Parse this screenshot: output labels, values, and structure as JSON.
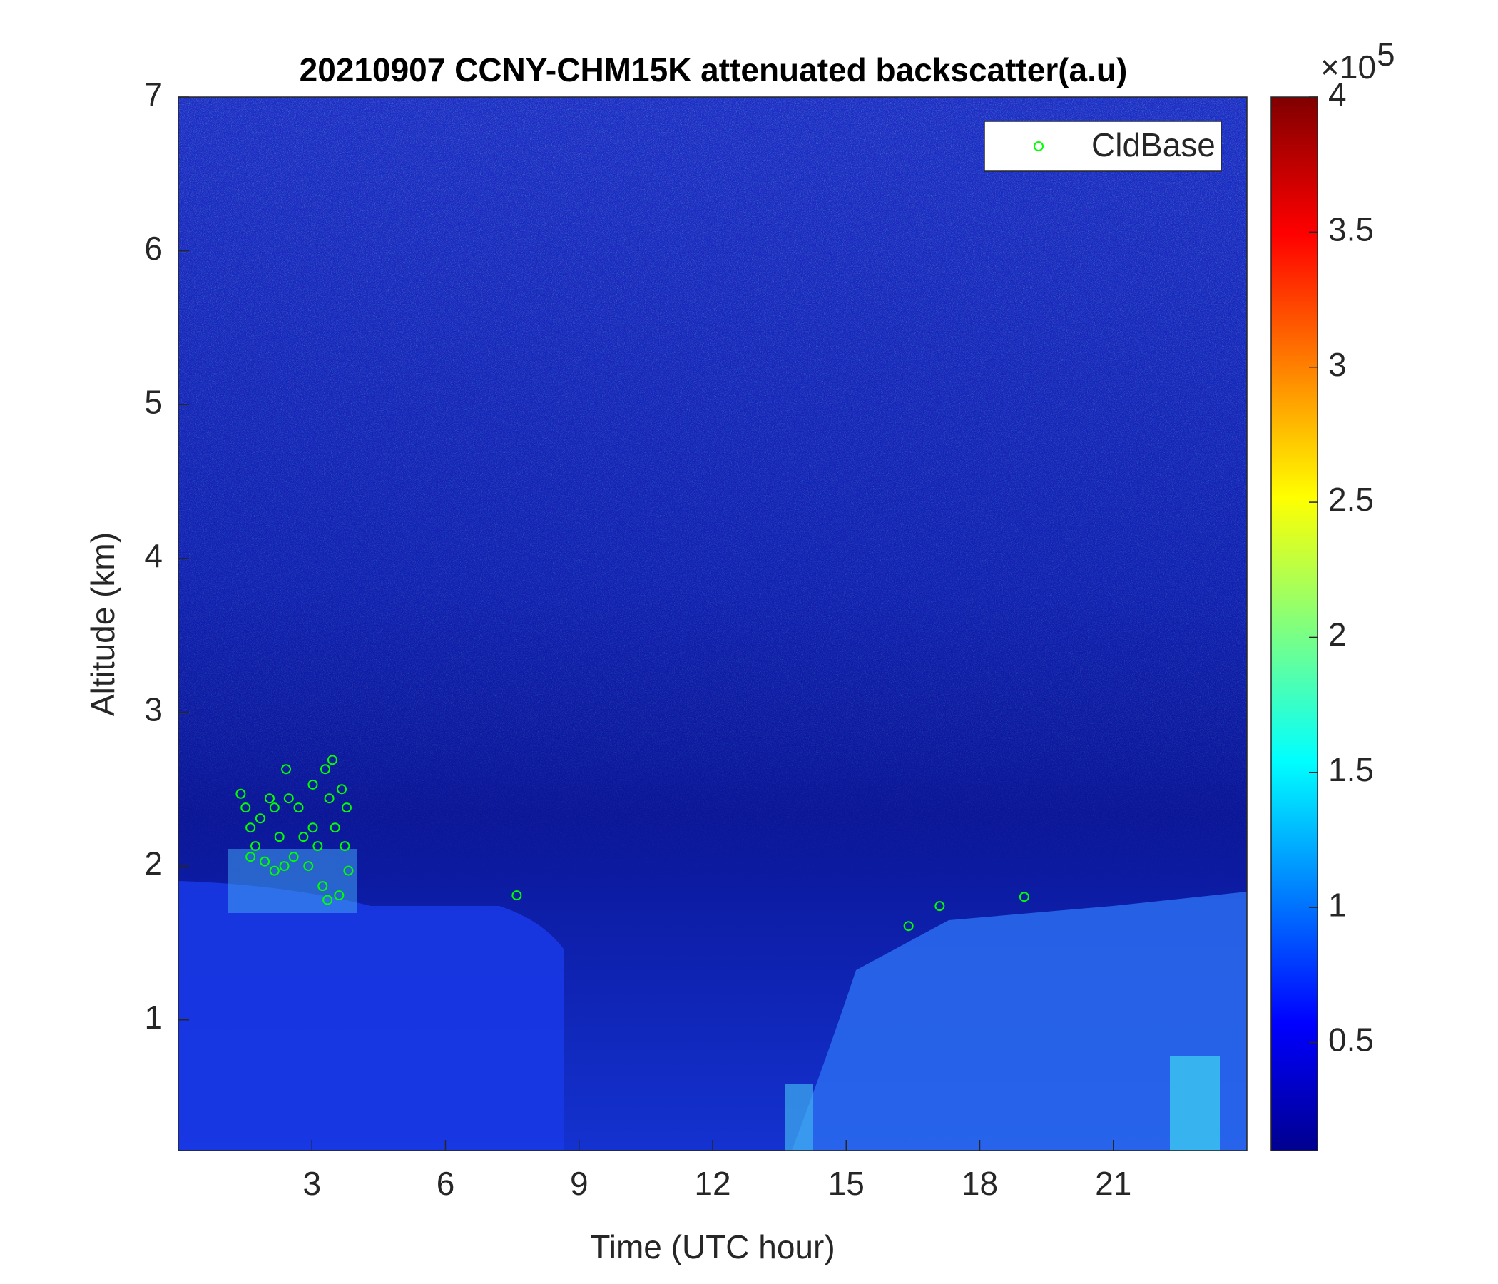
{
  "chart_data": {
    "type": "scatter",
    "title": "20210907 CCNY-CHM15K attenuated backscatter(a.u)",
    "x_label": "Time (UTC hour)",
    "y_label": "Altitude (km)",
    "xlim": [
      0,
      24
    ],
    "xticks": [
      3,
      6,
      9,
      12,
      15,
      18,
      21
    ],
    "ylim": [
      0.15,
      7
    ],
    "yticks": [
      1,
      2,
      3,
      4,
      5,
      6,
      7
    ],
    "legend_position": "upper right",
    "series": [
      {
        "name": "CldBase",
        "color": "#00ff00",
        "x": [
          1.4,
          1.51,
          1.62,
          1.73,
          1.84,
          1.94,
          2.05,
          2.16,
          2.27,
          2.42,
          2.48,
          2.59,
          2.7,
          2.81,
          2.92,
          3.02,
          3.13,
          3.24,
          3.3,
          3.39,
          3.46,
          3.52,
          3.61,
          3.67,
          3.74,
          3.78,
          3.82,
          3.35,
          3.02,
          2.16,
          1.62,
          2.38,
          7.6,
          16.4,
          17.1,
          19.0
        ],
        "y": [
          2.47,
          2.38,
          2.25,
          2.13,
          2.31,
          2.03,
          2.44,
          1.97,
          2.19,
          2.63,
          2.44,
          2.06,
          2.38,
          2.19,
          2.0,
          2.25,
          2.13,
          1.87,
          2.63,
          2.44,
          2.69,
          2.25,
          1.81,
          2.5,
          2.13,
          2.38,
          1.97,
          1.78,
          2.53,
          2.38,
          2.06,
          2.0,
          1.81,
          1.61,
          1.74,
          1.8
        ]
      }
    ],
    "colorbar": {
      "lim": [
        0.1,
        4
      ],
      "ticks": [
        0.5,
        1,
        1.5,
        2,
        2.5,
        3,
        3.5,
        4
      ],
      "multiplier": "×10",
      "exponent": "5"
    }
  }
}
